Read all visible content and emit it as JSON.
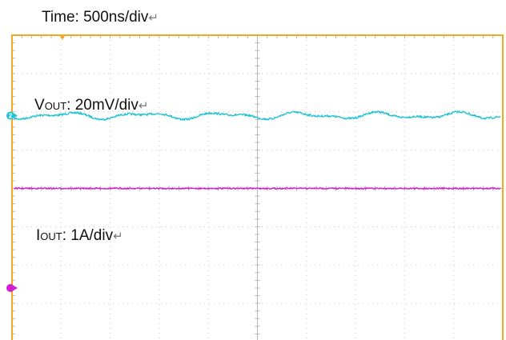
{
  "chart_data": {
    "type": "line",
    "title": "",
    "x_unit_per_division": "500ns/div",
    "divisions": {
      "horizontal": 10,
      "vertical": 8
    },
    "grid": true,
    "frame_color": "#f5a623",
    "grid_color": "#c8c8c8",
    "trigger_marker_color": "#f5a623",
    "labels": {
      "time": {
        "text": "Time: 500ns/div",
        "return_mark": "↵"
      },
      "vout": {
        "main": "V",
        "sub": "OUT",
        "rest": ": 20mV/div",
        "return_mark": "↵"
      },
      "iout": {
        "main": "I",
        "sub": "OUT",
        "rest": ": 1A/div",
        "return_mark": "↵"
      }
    },
    "series": [
      {
        "name": "VOUT",
        "channel": "2",
        "color": "#22c3d3",
        "scale": "20mV/div",
        "level_div": 2.1,
        "ripple": "low-frequency ripple, roughly ±0.2 div"
      },
      {
        "name": "IOUT",
        "channel": "",
        "color": "#d21fd2",
        "scale": "1A/div",
        "level_div": 4.0,
        "ripple": "flat with fine noise"
      }
    ],
    "channel_markers": [
      {
        "channel": "2",
        "color": "#22c3d3",
        "level_div": 2.1
      },
      {
        "channel": "",
        "color": "#d21fd2",
        "level_div": 6.6
      }
    ]
  }
}
